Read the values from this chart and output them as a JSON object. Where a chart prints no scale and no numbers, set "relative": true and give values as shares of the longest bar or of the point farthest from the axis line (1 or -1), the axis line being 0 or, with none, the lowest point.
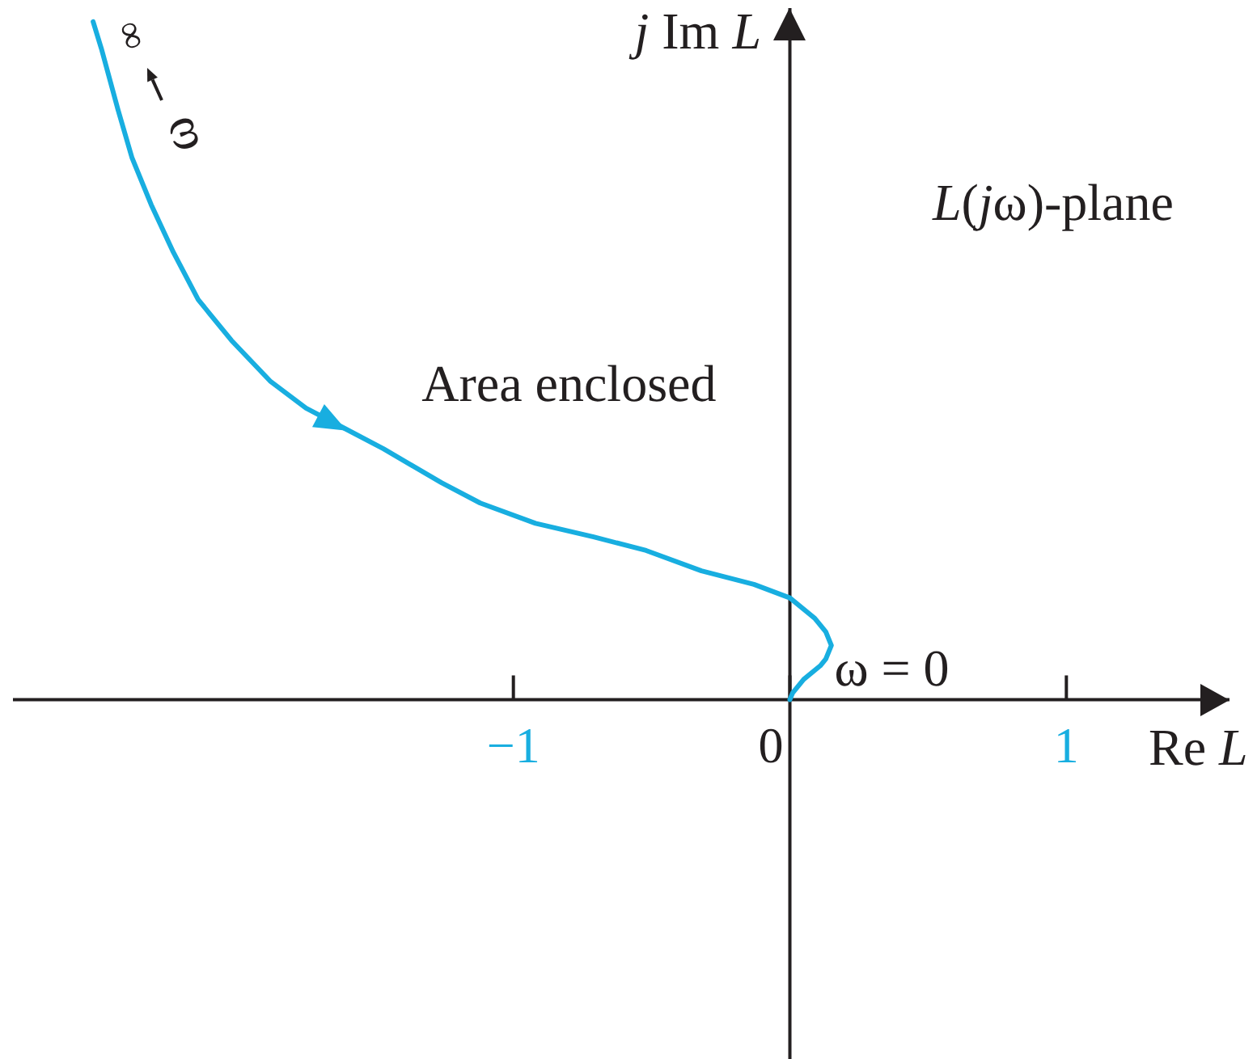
{
  "chart_data": {
    "type": "line",
    "relative": true,
    "xlabel": "Re L",
    "ylabel": "j Im L",
    "x": [
      -2.52,
      -2.49,
      -2.43,
      -2.38,
      -2.31,
      -2.23,
      -2.14,
      -2.02,
      -1.88,
      -1.75,
      -1.61,
      -1.47,
      -1.26,
      -1.12,
      -0.92,
      -0.71,
      -0.52,
      -0.32,
      -0.13,
      0,
      0.09,
      0.13,
      0.15,
      0.13,
      0.11,
      0.05,
      0.01,
      0
    ],
    "series": [
      {
        "color": "#18aee0",
        "values": [
          1,
          0.96,
          0.87,
          0.8,
          0.73,
          0.66,
          0.59,
          0.53,
          0.47,
          0.43,
          0.4,
          0.37,
          0.32,
          0.29,
          0.26,
          0.24,
          0.22,
          0.19,
          0.17,
          0.15,
          0.12,
          0.1,
          0.08,
          0.06,
          0.05,
          0.03,
          0.01,
          0
        ]
      }
    ],
    "xlim": [
      -2.81,
      1.59
    ],
    "xticks": [
      {
        "value": -1,
        "label": "−1"
      },
      0,
      1
    ],
    "line_style": "solid",
    "annotations": [
      {
        "text": "∞",
        "x": -2.52,
        "y": 1
      },
      "ω",
      "Area enclosed",
      {
        "text": "ω = 0",
        "x": 0,
        "y": 0
      },
      "L(jω)-plane"
    ]
  }
}
